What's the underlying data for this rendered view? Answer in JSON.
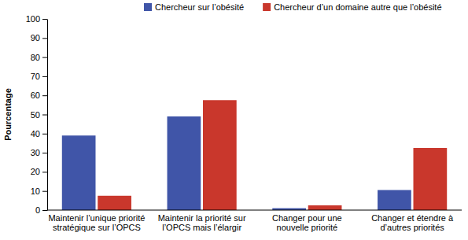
{
  "chart_data": {
    "type": "bar",
    "y_label": "Pourcentage",
    "categories": [
      "Maintenir l’unique priorité stratégique sur l’OPCS",
      "Maintenir la priorité sur l’OPCS mais l’élargir",
      "Changer pour une nouvelle priorité",
      "Changer et étendre à d’autres priorités"
    ],
    "series": [
      {
        "name": "Chercheur sur l’obésité",
        "color": "#4055a8",
        "values": [
          39,
          49,
          1,
          10.5
        ]
      },
      {
        "name": "Chercheur d’un domaine autre que l’obésité",
        "color": "#c9372c",
        "values": [
          7.5,
          57.5,
          2.5,
          32.5
        ]
      }
    ],
    "ylim": [
      0,
      100
    ],
    "yticks": [
      0,
      10,
      20,
      30,
      40,
      50,
      60,
      70,
      80,
      90,
      100
    ],
    "grid": false,
    "legend": "top"
  }
}
